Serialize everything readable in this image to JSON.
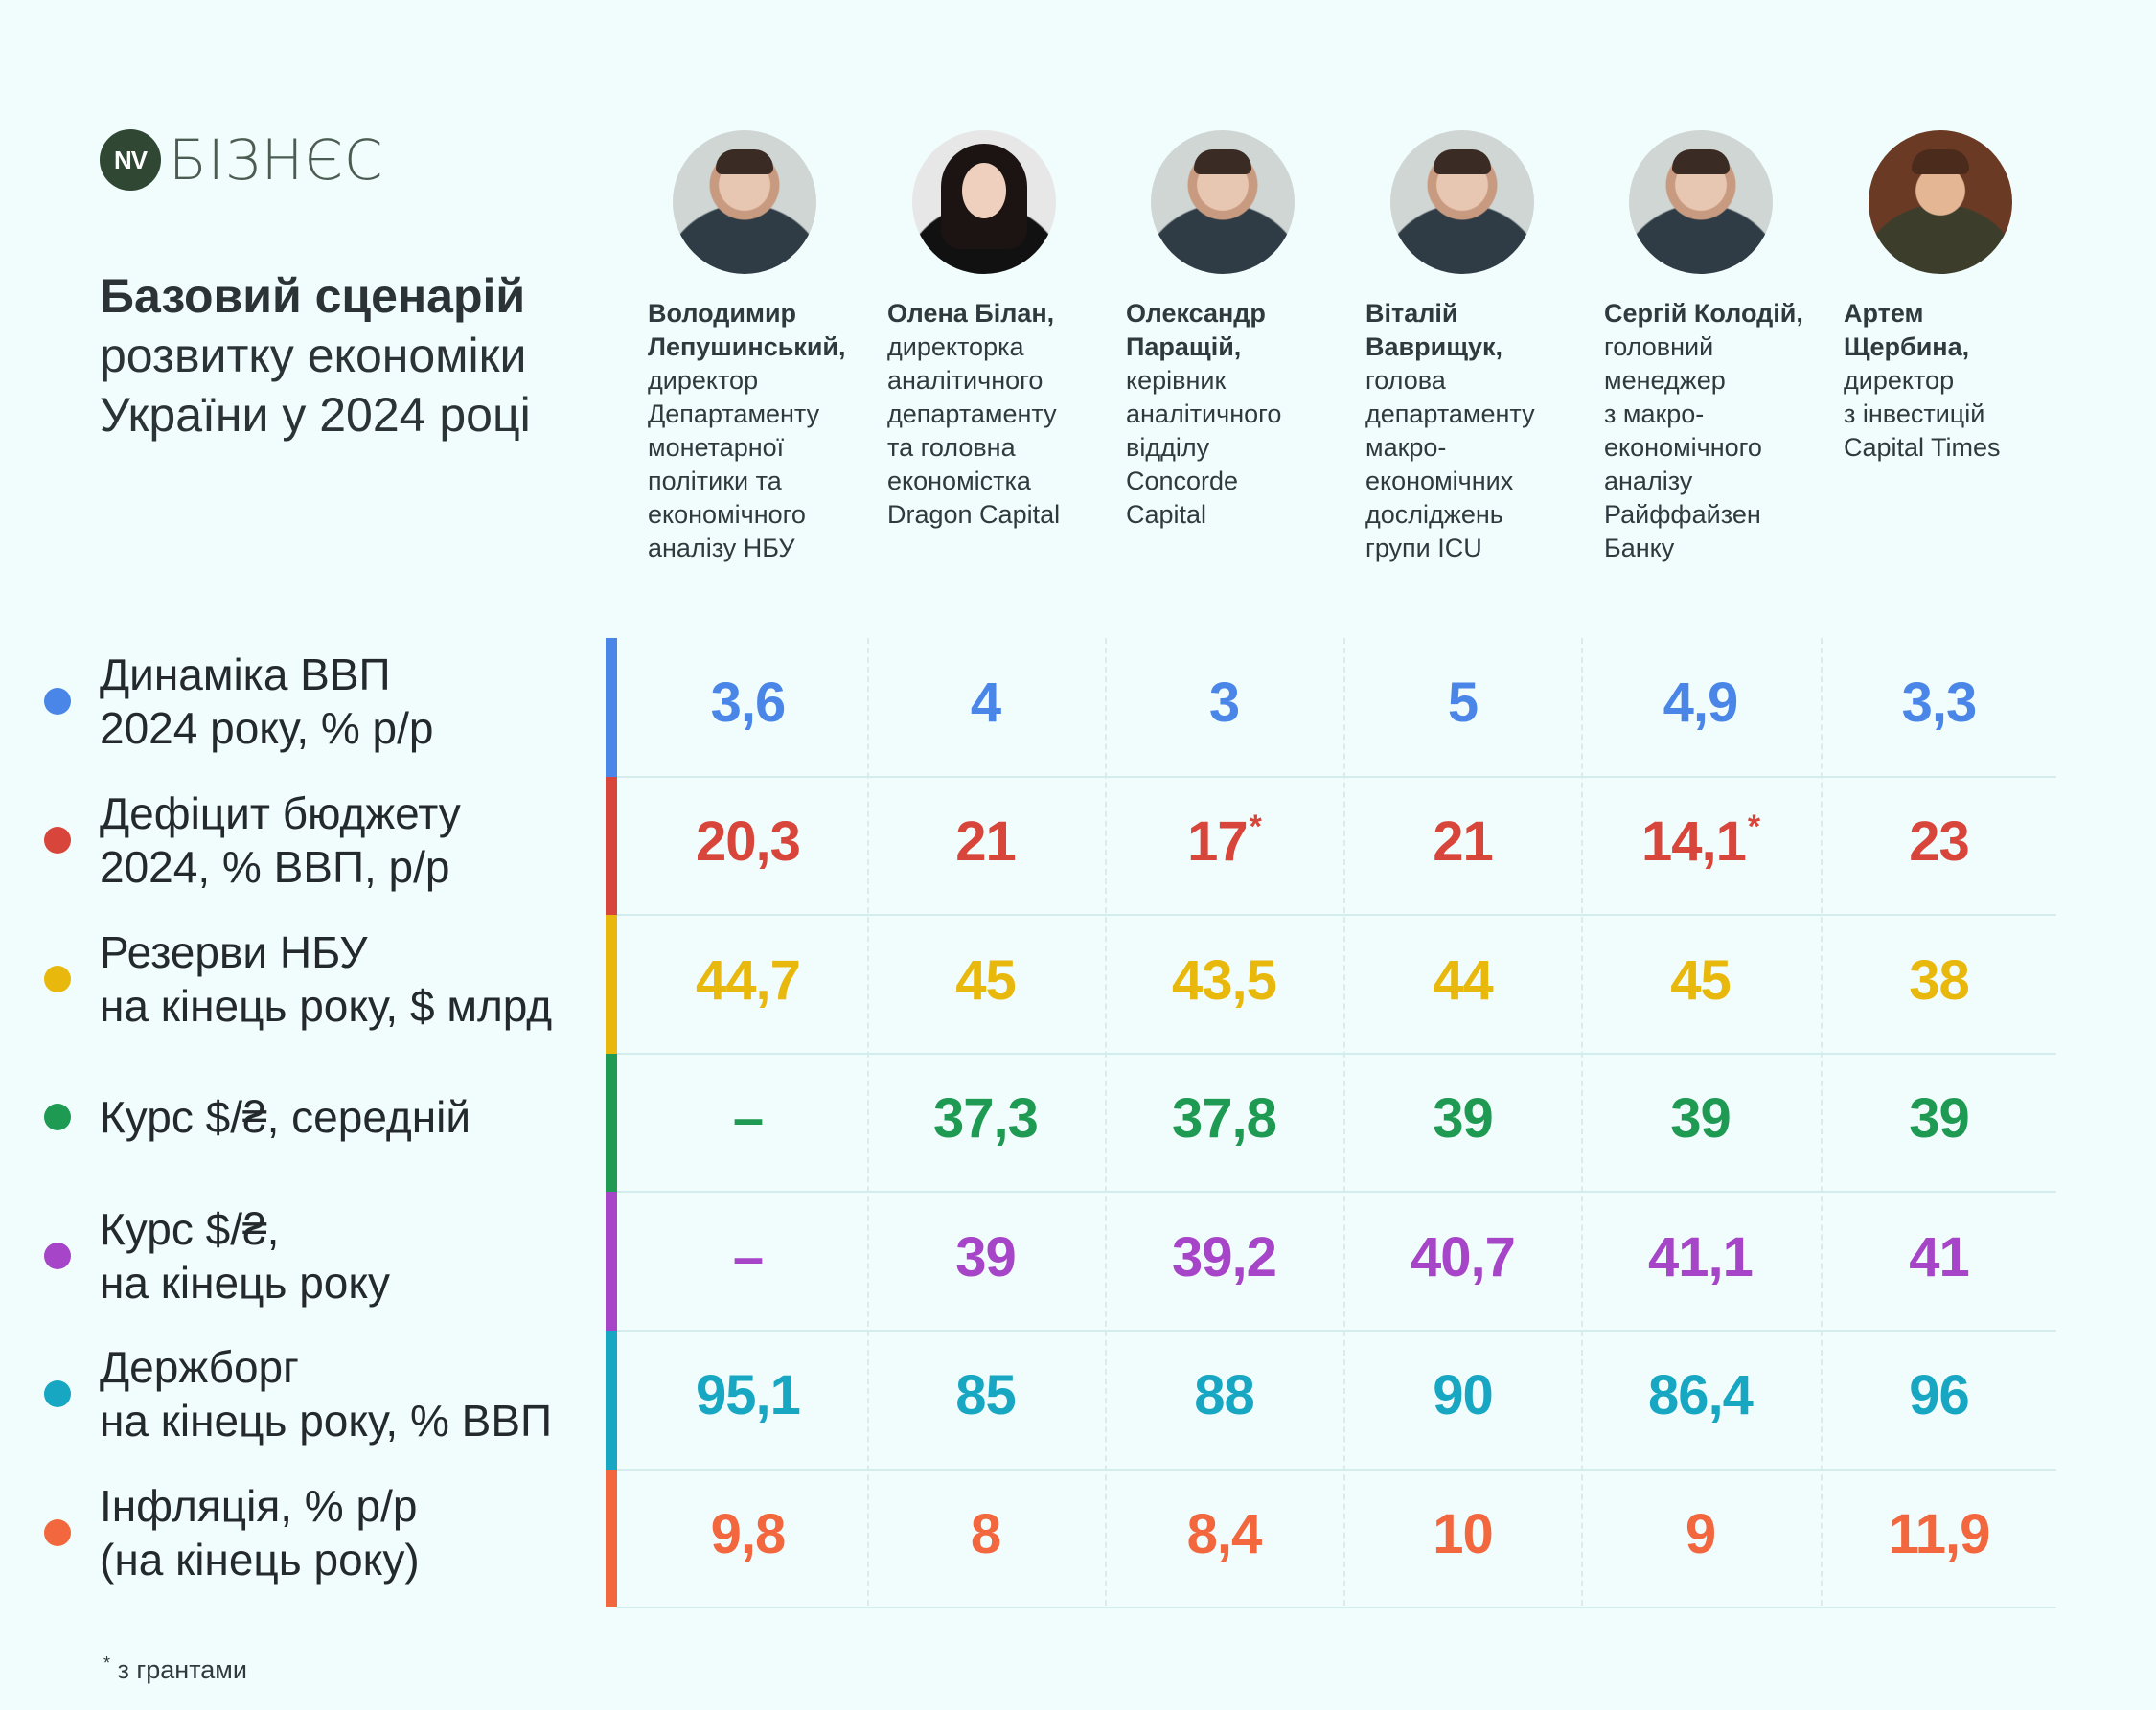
{
  "logo": {
    "badge": "NV",
    "text": "БІЗНЄС"
  },
  "title": {
    "bold": "Базовий сценарій",
    "line2": "розвитку економіки",
    "line3": "України у 2024 році"
  },
  "experts": [
    {
      "name": "Володимир",
      "name2": "Лепушинський,",
      "role": [
        "директор",
        "Департаменту",
        "монетарної",
        "політики та",
        "економічного",
        "аналізу НБУ"
      ]
    },
    {
      "name": "Олена Білан,",
      "name2": "",
      "role": [
        "директорка",
        "аналітичного",
        "департаменту",
        "та головна",
        "економістка",
        "Dragon Capital"
      ]
    },
    {
      "name": "Олександр",
      "name2": "Паращій,",
      "role": [
        "керівник",
        "аналітичного",
        "відділу",
        "Concorde",
        "Capital"
      ]
    },
    {
      "name": "Віталій",
      "name2": "Ваврищук,",
      "role": [
        "голова",
        "департаменту",
        "макро-",
        "економічних",
        "досліджень",
        "групи ICU"
      ]
    },
    {
      "name": "Сергій Колодій,",
      "name2": "",
      "role": [
        "головний",
        "менеджер",
        "з макро-",
        "економічного",
        "аналізу",
        "Райффайзен",
        "Банку"
      ]
    },
    {
      "name": "Артем",
      "name2": "Щербина,",
      "role": [
        "директор",
        "з інвестицій",
        "Capital Times"
      ]
    }
  ],
  "rows": [
    {
      "label": [
        "Динаміка ВВП",
        "2024 року, % р/р"
      ],
      "color": "#4a86e8",
      "values": [
        "3,6",
        "4",
        "3",
        "5",
        "4,9",
        "3,3"
      ],
      "stars": [
        false,
        false,
        false,
        false,
        false,
        false
      ]
    },
    {
      "label": [
        "Дефіцит бюджету",
        "2024, % ВВП, р/р"
      ],
      "color": "#d8453a",
      "values": [
        "20,3",
        "21",
        "17",
        "21",
        "14,1",
        "23"
      ],
      "stars": [
        false,
        false,
        true,
        false,
        true,
        false
      ]
    },
    {
      "label": [
        "Резерви НБУ",
        "на кінець року, $ млрд"
      ],
      "color": "#e8b90c",
      "values": [
        "44,7",
        "45",
        "43,5",
        "44",
        "45",
        "38"
      ],
      "stars": [
        false,
        false,
        false,
        false,
        false,
        false
      ]
    },
    {
      "label": [
        "Курс $/₴, середній"
      ],
      "color": "#1e9a52",
      "values": [
        "–",
        "37,3",
        "37,8",
        "39",
        "39",
        "39"
      ],
      "stars": [
        false,
        false,
        false,
        false,
        false,
        false
      ]
    },
    {
      "label": [
        "Курс $/₴,",
        "на кінець року"
      ],
      "color": "#a645c7",
      "values": [
        "–",
        "39",
        "39,2",
        "40,7",
        "41,1",
        "41"
      ],
      "stars": [
        false,
        false,
        false,
        false,
        false,
        false
      ]
    },
    {
      "label": [
        "Держборг",
        "на кінець року, % ВВП"
      ],
      "color": "#17a7c2",
      "values": [
        "95,1",
        "85",
        "88",
        "90",
        "86,4",
        "96"
      ],
      "stars": [
        false,
        false,
        false,
        false,
        false,
        false
      ]
    },
    {
      "label": [
        "Інфляція, % р/р",
        "(на кінець року)"
      ],
      "color": "#f2673e",
      "values": [
        "9,8",
        "8",
        "8,4",
        "10",
        "9",
        "11,9"
      ],
      "stars": [
        false,
        false,
        false,
        false,
        false,
        false
      ]
    }
  ],
  "star_symbol": "*",
  "footnote": {
    "mark": "*",
    "text": " з грантами"
  }
}
